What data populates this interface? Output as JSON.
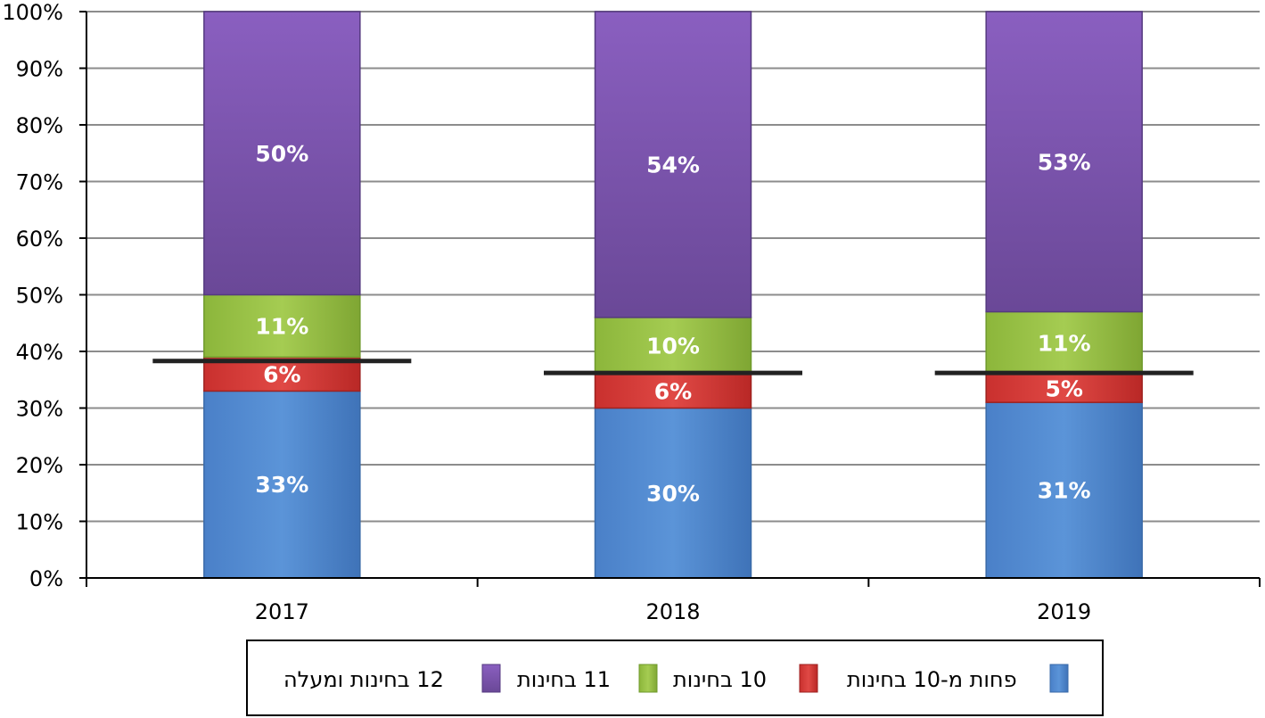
{
  "chart_data": {
    "type": "bar",
    "stacked": true,
    "categories": [
      "2017",
      "2018",
      "2019"
    ],
    "series": [
      {
        "name": "פחות מ-10 בחינות",
        "values": [
          33,
          30,
          31
        ],
        "labels": [
          "33%",
          "30%",
          "31%"
        ],
        "color": "#558ed5"
      },
      {
        "name": "10 בחינות",
        "values": [
          6,
          6,
          5
        ],
        "labels": [
          "6%",
          "6%",
          "5%"
        ],
        "color": "#d83b38"
      },
      {
        "name": "11 בחינות",
        "values": [
          11,
          10,
          11
        ],
        "labels": [
          "11%",
          "10%",
          "11%"
        ],
        "color": "#9bc447"
      },
      {
        "name": "12 בחינות ומעלה",
        "values": [
          50,
          54,
          53
        ],
        "labels": [
          "50%",
          "54%",
          "53%"
        ],
        "color": "#7e56b0"
      }
    ],
    "reference_lines": [
      38.3,
      36.2,
      36.2
    ],
    "ylim": [
      0,
      100
    ],
    "yticks": [
      "0%",
      "10%",
      "20%",
      "30%",
      "40%",
      "50%",
      "60%",
      "70%",
      "80%",
      "90%",
      "100%"
    ],
    "grid": true,
    "legend_position": "bottom",
    "legend_order": [
      "12 בחינות ומעלה",
      "11 בחינות",
      "10 בחינות",
      "פחות מ-10 בחינות"
    ],
    "title": "",
    "xlabel": "",
    "ylabel": ""
  }
}
